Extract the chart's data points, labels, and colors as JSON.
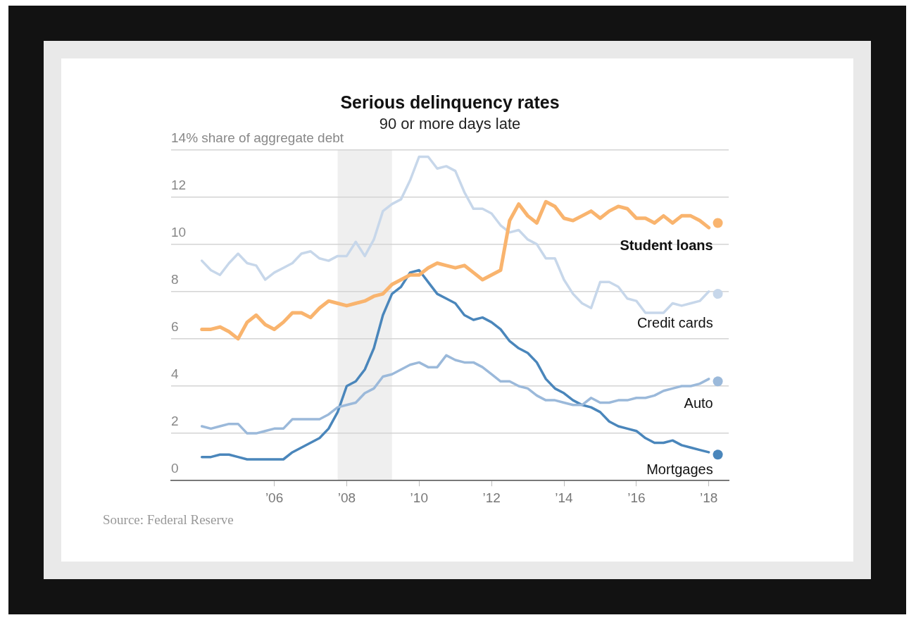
{
  "chart_data": {
    "type": "line",
    "title": "Serious delinquency rates",
    "subtitle": "90 or more days late",
    "annotations": [
      "Source: Federal Reserve"
    ],
    "x": [
      2004,
      2004.25,
      2004.5,
      2004.75,
      2005,
      2005.25,
      2005.5,
      2005.75,
      2006,
      2006.25,
      2006.5,
      2006.75,
      2007,
      2007.25,
      2007.5,
      2007.75,
      2008,
      2008.25,
      2008.5,
      2008.75,
      2009,
      2009.25,
      2009.5,
      2009.75,
      2010,
      2010.25,
      2010.5,
      2010.75,
      2011,
      2011.25,
      2011.5,
      2011.75,
      2012,
      2012.25,
      2012.5,
      2012.75,
      2013,
      2013.25,
      2013.5,
      2013.75,
      2014,
      2014.25,
      2014.5,
      2014.75,
      2015,
      2015.25,
      2015.5,
      2015.75,
      2016,
      2016.25,
      2016.5,
      2016.75,
      2017,
      2017.25,
      2017.5,
      2017.75,
      2018,
      2018.25
    ],
    "xlim": [
      2003.15,
      2018.55
    ],
    "xticks": [
      {
        "value": 2006,
        "label": "’06"
      },
      {
        "value": 2008,
        "label": "’08"
      },
      {
        "value": 2010,
        "label": "’10"
      },
      {
        "value": 2012,
        "label": "’12"
      },
      {
        "value": 2014,
        "label": "’14"
      },
      {
        "value": 2016,
        "label": "’16"
      },
      {
        "value": 2018,
        "label": "’18"
      }
    ],
    "ylim": [
      0,
      14
    ],
    "yticks": [
      0,
      2,
      4,
      6,
      8,
      10,
      12,
      {
        "value": 14,
        "label": "14% share of aggregate debt"
      }
    ],
    "grid": "y",
    "bands": [
      {
        "axis": "x",
        "from": 2007.75,
        "to": 2009.25,
        "color": "#efefef"
      }
    ],
    "series": [
      {
        "name": "Student loans",
        "color": "#f9b46e",
        "values": [
          6.4,
          6.4,
          6.5,
          6.3,
          6.0,
          6.7,
          7.0,
          6.6,
          6.4,
          6.7,
          7.1,
          7.1,
          6.9,
          7.3,
          7.6,
          7.5,
          7.4,
          7.5,
          7.6,
          7.8,
          7.9,
          8.3,
          8.5,
          8.7,
          8.7,
          9.0,
          9.2,
          9.1,
          9.0,
          9.1,
          8.8,
          8.5,
          8.7,
          8.9,
          11.0,
          11.7,
          11.2,
          10.9,
          11.8,
          11.6,
          11.1,
          11.0,
          11.2,
          11.4,
          11.1,
          11.4,
          11.6,
          11.5,
          11.1,
          11.1,
          10.9,
          11.2,
          10.9,
          11.2,
          11.2,
          11.0,
          10.7,
          null
        ]
      },
      {
        "name": "Credit cards",
        "color": "#c7d7ea",
        "values": [
          9.3,
          8.9,
          8.7,
          9.2,
          9.6,
          9.2,
          9.1,
          8.5,
          8.8,
          9.0,
          9.2,
          9.6,
          9.7,
          9.4,
          9.3,
          9.5,
          9.5,
          10.1,
          9.5,
          10.2,
          11.4,
          11.7,
          11.9,
          12.7,
          13.7,
          13.7,
          13.2,
          13.3,
          13.1,
          12.2,
          11.5,
          11.5,
          11.3,
          10.8,
          10.5,
          10.6,
          10.2,
          10.0,
          9.4,
          9.4,
          8.5,
          7.9,
          7.5,
          7.3,
          8.4,
          8.4,
          8.2,
          7.7,
          7.6,
          7.1,
          7.1,
          7.1,
          7.5,
          7.4,
          7.5,
          7.6,
          8.0,
          null
        ]
      },
      {
        "name": "Auto",
        "color": "#9bb9da",
        "values": [
          2.3,
          2.2,
          2.3,
          2.4,
          2.4,
          2.0,
          2.0,
          2.1,
          2.2,
          2.2,
          2.6,
          2.6,
          2.6,
          2.6,
          2.8,
          3.1,
          3.2,
          3.3,
          3.7,
          3.9,
          4.4,
          4.5,
          4.7,
          4.9,
          5.0,
          4.8,
          4.8,
          5.3,
          5.1,
          5.0,
          5.0,
          4.8,
          4.5,
          4.2,
          4.2,
          4.0,
          3.9,
          3.6,
          3.4,
          3.4,
          3.3,
          3.2,
          3.2,
          3.5,
          3.3,
          3.3,
          3.4,
          3.4,
          3.5,
          3.5,
          3.6,
          3.8,
          3.9,
          4.0,
          4.0,
          4.1,
          4.3,
          null
        ]
      },
      {
        "name": "Mortgages",
        "color": "#4a86bb",
        "values": [
          1.0,
          1.0,
          1.1,
          1.1,
          1.0,
          0.9,
          0.9,
          0.9,
          0.9,
          0.9,
          1.2,
          1.4,
          1.6,
          1.8,
          2.2,
          2.9,
          4.0,
          4.2,
          4.7,
          5.6,
          7.0,
          7.9,
          8.2,
          8.8,
          8.9,
          8.4,
          7.9,
          7.7,
          7.5,
          7.0,
          6.8,
          6.9,
          6.7,
          6.4,
          5.9,
          5.6,
          5.4,
          5.0,
          4.3,
          3.9,
          3.7,
          3.4,
          3.2,
          3.1,
          2.9,
          2.5,
          2.3,
          2.2,
          2.1,
          1.8,
          1.6,
          1.6,
          1.7,
          1.5,
          1.4,
          1.3,
          1.2,
          null
        ]
      },
      {
        "type": "scatter",
        "marker": "circle",
        "color": "#f9b46e",
        "values": [
          null,
          null,
          null,
          null,
          null,
          null,
          null,
          null,
          null,
          null,
          null,
          null,
          null,
          null,
          null,
          null,
          null,
          null,
          null,
          null,
          null,
          null,
          null,
          null,
          null,
          null,
          null,
          null,
          null,
          null,
          null,
          null,
          null,
          null,
          null,
          null,
          null,
          null,
          null,
          null,
          null,
          null,
          null,
          null,
          null,
          null,
          null,
          null,
          null,
          null,
          null,
          null,
          null,
          null,
          null,
          null,
          null,
          10.9
        ]
      },
      {
        "type": "scatter",
        "marker": "circle",
        "color": "#c7d7ea",
        "values": [
          null,
          null,
          null,
          null,
          null,
          null,
          null,
          null,
          null,
          null,
          null,
          null,
          null,
          null,
          null,
          null,
          null,
          null,
          null,
          null,
          null,
          null,
          null,
          null,
          null,
          null,
          null,
          null,
          null,
          null,
          null,
          null,
          null,
          null,
          null,
          null,
          null,
          null,
          null,
          null,
          null,
          null,
          null,
          null,
          null,
          null,
          null,
          null,
          null,
          null,
          null,
          null,
          null,
          null,
          null,
          null,
          null,
          7.9
        ]
      },
      {
        "type": "scatter",
        "marker": "circle",
        "color": "#9bb9da",
        "values": [
          null,
          null,
          null,
          null,
          null,
          null,
          null,
          null,
          null,
          null,
          null,
          null,
          null,
          null,
          null,
          null,
          null,
          null,
          null,
          null,
          null,
          null,
          null,
          null,
          null,
          null,
          null,
          null,
          null,
          null,
          null,
          null,
          null,
          null,
          null,
          null,
          null,
          null,
          null,
          null,
          null,
          null,
          null,
          null,
          null,
          null,
          null,
          null,
          null,
          null,
          null,
          null,
          null,
          null,
          null,
          null,
          null,
          4.2
        ]
      },
      {
        "type": "scatter",
        "marker": "circle",
        "color": "#4a86bb",
        "values": [
          null,
          null,
          null,
          null,
          null,
          null,
          null,
          null,
          null,
          null,
          null,
          null,
          null,
          null,
          null,
          null,
          null,
          null,
          null,
          null,
          null,
          null,
          null,
          null,
          null,
          null,
          null,
          null,
          null,
          null,
          null,
          null,
          null,
          null,
          null,
          null,
          null,
          null,
          null,
          null,
          null,
          null,
          null,
          null,
          null,
          null,
          null,
          null,
          null,
          null,
          null,
          null,
          null,
          null,
          null,
          null,
          null,
          1.1
        ]
      }
    ]
  }
}
